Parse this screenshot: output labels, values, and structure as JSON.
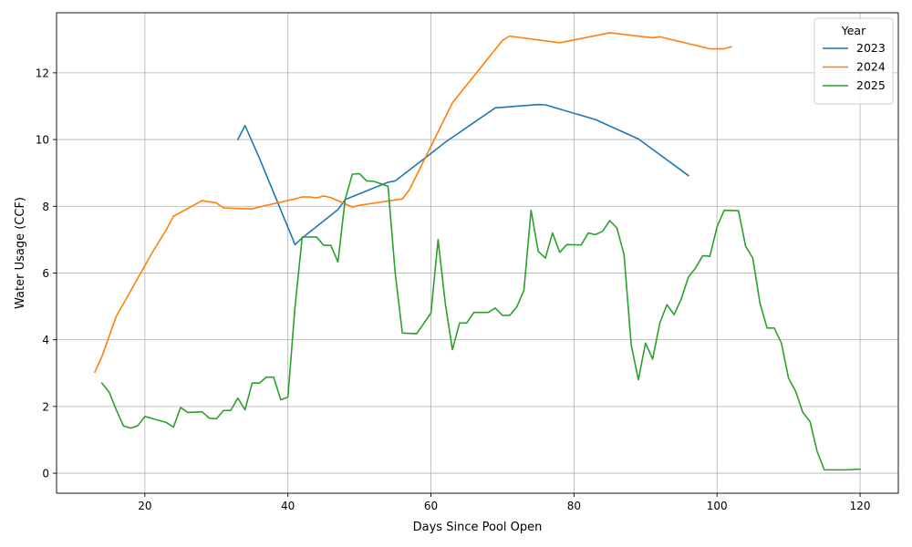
{
  "chart_data": {
    "type": "line",
    "title": "",
    "xlabel": "Days Since Pool Open",
    "ylabel": "Water Usage (CCF)",
    "xlim": [
      7.65,
      125.35
    ],
    "ylim": [
      -0.6,
      13.8
    ],
    "xticks": [
      20,
      40,
      60,
      80,
      100,
      120
    ],
    "yticks": [
      0,
      2,
      4,
      6,
      8,
      10,
      12
    ],
    "grid": true,
    "legend": {
      "title": "Year",
      "placement": "top-right"
    },
    "series": [
      {
        "name": "2023",
        "color": "#1f77b4",
        "points": [
          [
            33,
            10.0
          ],
          [
            34,
            10.42
          ],
          [
            36,
            9.45
          ],
          [
            41,
            6.85
          ],
          [
            42,
            7.05
          ],
          [
            47,
            7.9
          ],
          [
            48,
            8.2
          ],
          [
            54,
            8.72
          ],
          [
            55,
            8.76
          ],
          [
            61,
            9.75
          ],
          [
            62,
            9.92
          ],
          [
            69,
            10.95
          ],
          [
            75,
            11.05
          ],
          [
            76,
            11.04
          ],
          [
            83,
            10.6
          ],
          [
            89,
            10.02
          ],
          [
            96,
            8.92
          ]
        ]
      },
      {
        "name": "2024",
        "color": "#ff7f0e",
        "points": [
          [
            13,
            3.03
          ],
          [
            14,
            3.5
          ],
          [
            16,
            4.7
          ],
          [
            21,
            6.6
          ],
          [
            23,
            7.3
          ],
          [
            24,
            7.7
          ],
          [
            28,
            8.17
          ],
          [
            30,
            8.1
          ],
          [
            31,
            7.95
          ],
          [
            35,
            7.92
          ],
          [
            36,
            7.98
          ],
          [
            41,
            8.22
          ],
          [
            42,
            8.28
          ],
          [
            43,
            8.28
          ],
          [
            44,
            8.25
          ],
          [
            45,
            8.31
          ],
          [
            46,
            8.26
          ],
          [
            49,
            7.98
          ],
          [
            50,
            8.03
          ],
          [
            56,
            8.22
          ],
          [
            57,
            8.5
          ],
          [
            63,
            11.1
          ],
          [
            70,
            12.97
          ],
          [
            71,
            13.1
          ],
          [
            78,
            12.9
          ],
          [
            85,
            13.2
          ],
          [
            91,
            13.05
          ],
          [
            92,
            13.08
          ],
          [
            99,
            12.72
          ],
          [
            101,
            12.72
          ],
          [
            102,
            12.78
          ]
        ]
      },
      {
        "name": "2025",
        "color": "#2ca02c",
        "points": [
          [
            14,
            2.7
          ],
          [
            15,
            2.43
          ],
          [
            16,
            1.9
          ],
          [
            17,
            1.42
          ],
          [
            18,
            1.35
          ],
          [
            19,
            1.42
          ],
          [
            20,
            1.7
          ],
          [
            21,
            1.64
          ],
          [
            23,
            1.52
          ],
          [
            24,
            1.38
          ],
          [
            25,
            1.97
          ],
          [
            26,
            1.82
          ],
          [
            28,
            1.84
          ],
          [
            29,
            1.65
          ],
          [
            30,
            1.63
          ],
          [
            31,
            1.88
          ],
          [
            32,
            1.88
          ],
          [
            33,
            2.25
          ],
          [
            34,
            1.9
          ],
          [
            35,
            2.7
          ],
          [
            36,
            2.7
          ],
          [
            37,
            2.88
          ],
          [
            38,
            2.88
          ],
          [
            39,
            2.2
          ],
          [
            40,
            2.28
          ],
          [
            41,
            5.0
          ],
          [
            42,
            7.08
          ],
          [
            44,
            7.08
          ],
          [
            45,
            6.83
          ],
          [
            46,
            6.83
          ],
          [
            47,
            6.33
          ],
          [
            48,
            8.2
          ],
          [
            49,
            8.96
          ],
          [
            50,
            8.98
          ],
          [
            51,
            8.76
          ],
          [
            52,
            8.75
          ],
          [
            54,
            8.6
          ],
          [
            55,
            6.0
          ],
          [
            56,
            4.2
          ],
          [
            58,
            4.18
          ],
          [
            60,
            4.8
          ],
          [
            61,
            7.0
          ],
          [
            62,
            5.1
          ],
          [
            63,
            3.7
          ],
          [
            64,
            4.5
          ],
          [
            65,
            4.5
          ],
          [
            66,
            4.82
          ],
          [
            68,
            4.82
          ],
          [
            69,
            4.95
          ],
          [
            70,
            4.73
          ],
          [
            71,
            4.73
          ],
          [
            72,
            4.98
          ],
          [
            73,
            5.48
          ],
          [
            74,
            7.88
          ],
          [
            75,
            6.65
          ],
          [
            76,
            6.45
          ],
          [
            77,
            7.2
          ],
          [
            78,
            6.62
          ],
          [
            79,
            6.85
          ],
          [
            81,
            6.84
          ],
          [
            82,
            7.2
          ],
          [
            83,
            7.15
          ],
          [
            84,
            7.25
          ],
          [
            85,
            7.57
          ],
          [
            86,
            7.35
          ],
          [
            87,
            6.55
          ],
          [
            88,
            3.85
          ],
          [
            89,
            2.8
          ],
          [
            90,
            3.9
          ],
          [
            91,
            3.42
          ],
          [
            92,
            4.5
          ],
          [
            93,
            5.05
          ],
          [
            94,
            4.75
          ],
          [
            95,
            5.22
          ],
          [
            96,
            5.88
          ],
          [
            97,
            6.15
          ],
          [
            98,
            6.52
          ],
          [
            99,
            6.5
          ],
          [
            100,
            7.38
          ],
          [
            101,
            7.88
          ],
          [
            103,
            7.87
          ],
          [
            104,
            6.8
          ],
          [
            105,
            6.45
          ],
          [
            106,
            5.1
          ],
          [
            107,
            4.35
          ],
          [
            108,
            4.35
          ],
          [
            109,
            3.9
          ],
          [
            110,
            2.85
          ],
          [
            111,
            2.45
          ],
          [
            112,
            1.82
          ],
          [
            113,
            1.55
          ],
          [
            114,
            0.65
          ],
          [
            115,
            0.1
          ],
          [
            118,
            0.1
          ],
          [
            120,
            0.12
          ]
        ]
      }
    ]
  }
}
